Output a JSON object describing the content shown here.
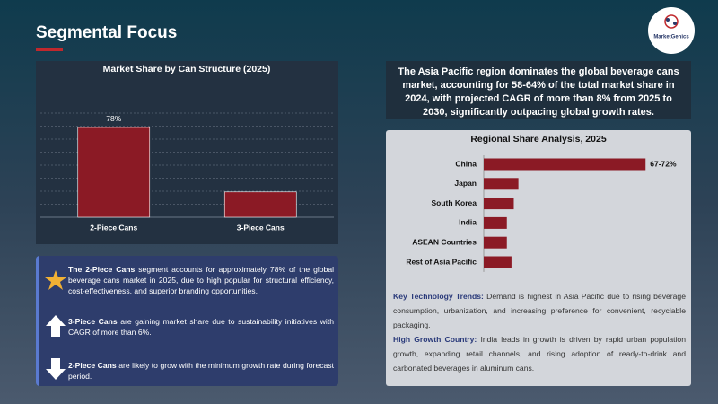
{
  "title": "Segmental Focus",
  "logo": "MarketGenics",
  "highlight": "The Asia Pacific region dominates the global beverage cans market, accounting for 58-64% of the total market share in 2024, with projected CAGR of more than 8% from 2025 to 2030, significantly outpacing global growth rates.",
  "bullets": [
    {
      "lead": "The 2-Piece Cans",
      "text": " segment accounts for approximately 78% of the global beverage cans market in 2025, due to high popular for structural efficiency, cost-effectiveness, and superior branding opportunities."
    },
    {
      "lead": "3-Piece Cans",
      "text": " are gaining market share due to sustainability initiatives with CAGR of more than 6%."
    },
    {
      "lead": "2-Piece Cans",
      "text": " are likely to grow with the minimum growth rate during forecast period."
    }
  ],
  "notes": [
    {
      "lead": "Key Technology Trends:",
      "text": " Demand is highest in Asia Pacific due to rising beverage consumption, urbanization, and increasing preference for convenient, recyclable packaging."
    },
    {
      "lead": "High Growth Country:",
      "text": " India leads in growth is driven by rapid urban population growth, expanding retail channels, and rising adoption of ready-to-drink and carbonated beverages in aluminum cans."
    }
  ],
  "chart_data": [
    {
      "type": "bar",
      "title": "Market Share by Can Structure (2025)",
      "categories": [
        "2-Piece Cans",
        "3-Piece Cans"
      ],
      "values": [
        78,
        22
      ],
      "value_labels": [
        "78%",
        null
      ],
      "color": "#8b1a25",
      "ylim": [
        0,
        90
      ],
      "grid": true
    },
    {
      "type": "hbar",
      "title": "Regional Share Analysis, 2025",
      "categories": [
        "China",
        "Japan",
        "South Korea",
        "India",
        "ASEAN Countries",
        "Rest of Asia Pacific"
      ],
      "values": [
        70,
        15,
        13,
        10,
        10,
        12
      ],
      "value_labels": [
        "67-72%",
        null,
        null,
        null,
        null,
        null
      ],
      "color": "#8b1a25",
      "xlim": [
        0,
        80
      ]
    }
  ]
}
